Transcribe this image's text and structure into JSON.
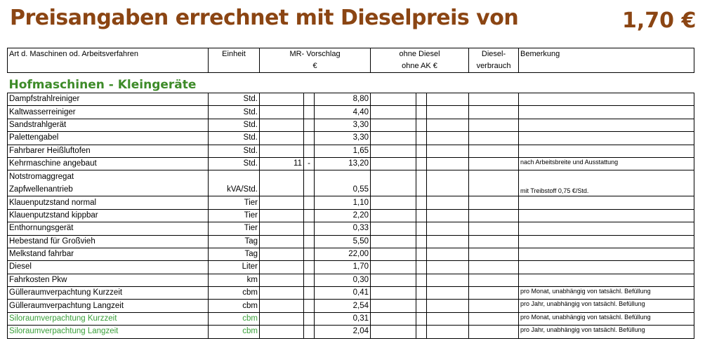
{
  "header": {
    "title": "Preisangaben errechnet mit Dieselpreis von",
    "diesel_price": "1,70 €"
  },
  "columns": {
    "art": "Art d. Maschinen od. Arbeitsverfahren",
    "einheit": "Einheit",
    "mr_line1": "MR- Vorschlag",
    "mr_line2": "€",
    "ohne_line1": "ohne Diesel",
    "ohne_line2": "ohne AK €",
    "diesel_line1": "Diesel-",
    "diesel_line2": "verbrauch",
    "bemerkung": "Bemerkung"
  },
  "section": {
    "title": "Hofmaschinen - Kleingeräte"
  },
  "rows": [
    {
      "name": "Dampfstrahlreiniger",
      "unit": "Std.",
      "from": "",
      "dash": "",
      "value": "8,80",
      "remark": ""
    },
    {
      "name": "Kaltwasserreiniger",
      "unit": "Std.",
      "from": "",
      "dash": "",
      "value": "4,40",
      "remark": ""
    },
    {
      "name": "Sandstrahlgerät",
      "unit": "Std.",
      "from": "",
      "dash": "",
      "value": "3,30",
      "remark": ""
    },
    {
      "name": "Palettengabel",
      "unit": "Std.",
      "from": "",
      "dash": "",
      "value": "3,30",
      "remark": ""
    },
    {
      "name": "Fahrbarer Heißluftofen",
      "unit": "Std.",
      "from": "",
      "dash": "",
      "value": "1,65",
      "remark": ""
    },
    {
      "name": "Kehrmaschine angebaut",
      "unit": "Std.",
      "from": "11",
      "dash": "-",
      "value": "13,20",
      "remark": "nach Arbeitsbreite und Ausstattung"
    },
    {
      "name": "Notstromaggregat",
      "name2": "Zapfwellenantrieb",
      "unit": "kVA/Std.",
      "from": "",
      "dash": "",
      "value": "0,55",
      "remark": "mit Treibstoff 0,75 €/Std."
    },
    {
      "name": "Klauenputzstand normal",
      "unit": "Tier",
      "from": "",
      "dash": "",
      "value": "1,10",
      "remark": ""
    },
    {
      "name": "Klauenputzstand kippbar",
      "unit": "Tier",
      "from": "",
      "dash": "",
      "value": "2,20",
      "remark": ""
    },
    {
      "name": "Enthornungsgerät",
      "unit": "Tier",
      "from": "",
      "dash": "",
      "value": "0,33",
      "remark": ""
    },
    {
      "name": "Hebestand für Großvieh",
      "unit": "Tag",
      "from": "",
      "dash": "",
      "value": "5,50",
      "remark": ""
    },
    {
      "name": "Melkstand fahrbar",
      "unit": "Tag",
      "from": "",
      "dash": "",
      "value": "22,00",
      "remark": ""
    },
    {
      "name": "Diesel",
      "unit": "Liter",
      "from": "",
      "dash": "",
      "value": "1,70",
      "remark": ""
    },
    {
      "name": "Fahrkosten Pkw",
      "unit": "km",
      "from": "",
      "dash": "",
      "value": "0,30",
      "remark": ""
    },
    {
      "name": "Gülleraumverpachtung Kurzzeit",
      "unit": "cbm",
      "from": "",
      "dash": "",
      "value": "0,41",
      "remark": "pro Monat, unabhängig von tatsächl. Befüllung"
    },
    {
      "name": "Gülleraumverpachtung Langzeit",
      "unit": "cbm",
      "from": "",
      "dash": "",
      "value": "2,54",
      "remark": "pro Jahr, unabhängig von tatsächl. Befüllung"
    },
    {
      "name": "Siloraumverpachtung Kurzzeit",
      "unit": "cbm",
      "from": "",
      "dash": "",
      "value": "0,31",
      "remark": "pro Monat, unabhängig von tatsächl. Befüllung",
      "green": true
    },
    {
      "name": "Siloraumverpachtung Langzeit",
      "unit": "cbm",
      "from": "",
      "dash": "",
      "value": "2,04",
      "remark": "pro Jahr, unabhängig von tatsächl. Befüllung",
      "green": true
    }
  ],
  "colors": {
    "title": "#8B4513",
    "section": "#3d8b28",
    "green_rows": "#3aa03a"
  }
}
